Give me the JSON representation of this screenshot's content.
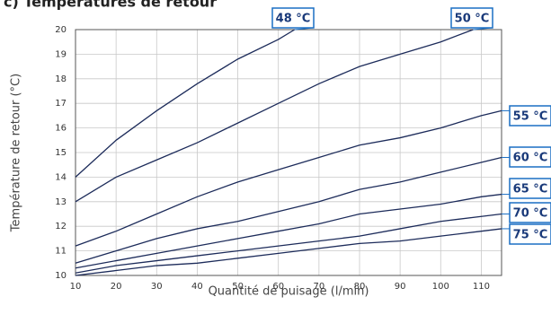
{
  "chart_data": {
    "type": "line",
    "title": "c) Températures de retour",
    "x_label": "Quantité de puisage (l/min)",
    "y_label": "Température de retour (°C)",
    "xlim": [
      10,
      115
    ],
    "ylim": [
      10,
      20
    ],
    "xticks": [
      10,
      20,
      30,
      40,
      50,
      60,
      70,
      80,
      90,
      100,
      110
    ],
    "yticks": [
      10,
      11,
      12,
      13,
      14,
      15,
      16,
      17,
      18,
      19,
      20
    ],
    "grid": true,
    "series": [
      {
        "name": "48 °C",
        "color": "#1c2b5a",
        "x": [
          10,
          20,
          30,
          40,
          50,
          60,
          64
        ],
        "values": [
          14,
          15.5,
          16.7,
          17.8,
          18.8,
          19.6,
          20
        ]
      },
      {
        "name": "50 °C",
        "color": "#1c2b5a",
        "x": [
          10,
          20,
          30,
          40,
          50,
          60,
          70,
          80,
          90,
          100,
          108
        ],
        "values": [
          13,
          14,
          14.7,
          15.4,
          16.2,
          17,
          17.8,
          18.5,
          19,
          19.5,
          20
        ]
      },
      {
        "name": "55 °C",
        "color": "#1c2b5a",
        "x": [
          10,
          20,
          30,
          40,
          50,
          60,
          70,
          80,
          90,
          100,
          110,
          115
        ],
        "values": [
          11.2,
          11.8,
          12.5,
          13.2,
          13.8,
          14.3,
          14.8,
          15.3,
          15.6,
          16,
          16.5,
          16.7
        ]
      },
      {
        "name": "60 °C",
        "color": "#1c2b5a",
        "x": [
          10,
          20,
          30,
          40,
          50,
          60,
          70,
          80,
          90,
          100,
          110,
          115
        ],
        "values": [
          10.5,
          11,
          11.5,
          11.9,
          12.2,
          12.6,
          13,
          13.5,
          13.8,
          14.2,
          14.6,
          14.8
        ]
      },
      {
        "name": "65 °C",
        "color": "#1c2b5a",
        "x": [
          10,
          20,
          30,
          40,
          50,
          60,
          70,
          80,
          90,
          100,
          110,
          115
        ],
        "values": [
          10.3,
          10.6,
          10.9,
          11.2,
          11.5,
          11.8,
          12.1,
          12.5,
          12.7,
          12.9,
          13.2,
          13.3
        ]
      },
      {
        "name": "70 °C",
        "color": "#1c2b5a",
        "x": [
          10,
          20,
          30,
          40,
          50,
          60,
          70,
          80,
          90,
          100,
          110,
          115
        ],
        "values": [
          10.1,
          10.4,
          10.6,
          10.8,
          11,
          11.2,
          11.4,
          11.6,
          11.9,
          12.2,
          12.4,
          12.5
        ]
      },
      {
        "name": "75 °C",
        "color": "#1c2b5a",
        "x": [
          10,
          20,
          30,
          40,
          50,
          60,
          70,
          80,
          90,
          100,
          110,
          115
        ],
        "values": [
          10,
          10.2,
          10.4,
          10.5,
          10.7,
          10.9,
          11.1,
          11.3,
          11.4,
          11.6,
          11.8,
          11.9
        ]
      }
    ]
  }
}
